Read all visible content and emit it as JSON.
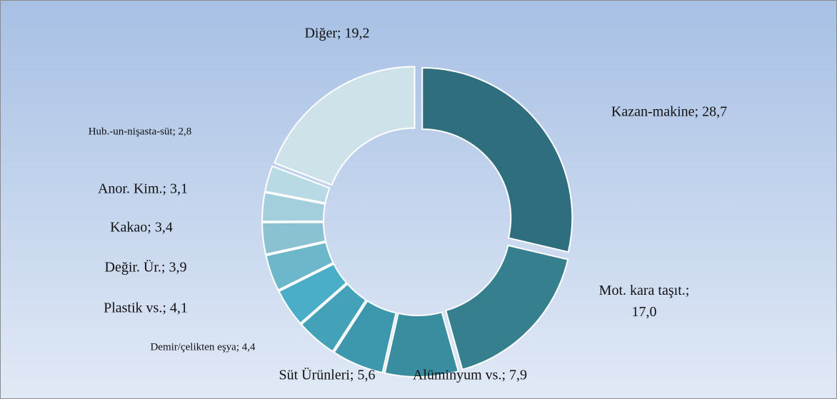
{
  "chart_data": {
    "type": "pie",
    "donut": true,
    "values": [
      28.7,
      17.0,
      7.9,
      5.6,
      4.4,
      4.1,
      3.9,
      3.4,
      3.1,
      2.8,
      19.2
    ],
    "value_labels": [
      "Kazan-makine; 28,7",
      "Mot. kara taşıt.; 17,0",
      "Alüminyum vs.; 7,9",
      "Süt Ürünleri; 5,6",
      "Demir/çelikten eşya; 4,4",
      "Plastik vs.; 4,1",
      "Değir. Ür.; 3,9",
      "Kakao; 3,4",
      "Anor. Kim.; 3,1",
      "Hub.-un-nişasta-süt; 2,8",
      "Diğer; 19,2"
    ],
    "colors": [
      "#2e6e7e",
      "#367f8e",
      "#3a8c9f",
      "#3e98ad",
      "#43a2b8",
      "#4aaec8",
      "#6db7ca",
      "#8ac2d2",
      "#a3cedb",
      "#b8dae4",
      "#cde2e9"
    ]
  }
}
